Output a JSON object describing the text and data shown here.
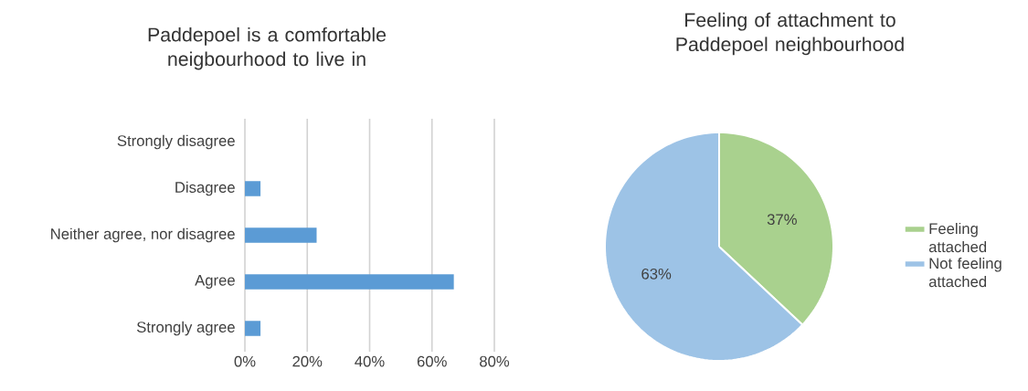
{
  "chart_data": [
    {
      "type": "bar",
      "orientation": "horizontal",
      "title": "Paddepoel is a comfortable neigbourhood to live in",
      "categories": [
        "Strongly disagree",
        "Disagree",
        "Neither agree, nor disagree",
        "Agree",
        "Strongly agree"
      ],
      "values": [
        0,
        5,
        23,
        67,
        5
      ],
      "color": "#5b9bd5",
      "xlim": [
        0,
        80
      ],
      "xticks": [
        {
          "value": 0,
          "label": "0%"
        },
        {
          "value": 20,
          "label": "20%"
        },
        {
          "value": 40,
          "label": "40%"
        },
        {
          "value": 60,
          "label": "60%"
        },
        {
          "value": 80,
          "label": "80%"
        }
      ],
      "grid": "x"
    },
    {
      "type": "pie",
      "title": "Feeling of attachment to Paddepoel neighbourhood",
      "categories": [
        "Feeling attached",
        "Not feeling attached"
      ],
      "values": [
        37,
        63
      ],
      "colors": [
        "#a9d18e",
        "#9dc3e6"
      ],
      "value_labels": [
        "37%",
        "63%"
      ],
      "legend": "right"
    }
  ]
}
